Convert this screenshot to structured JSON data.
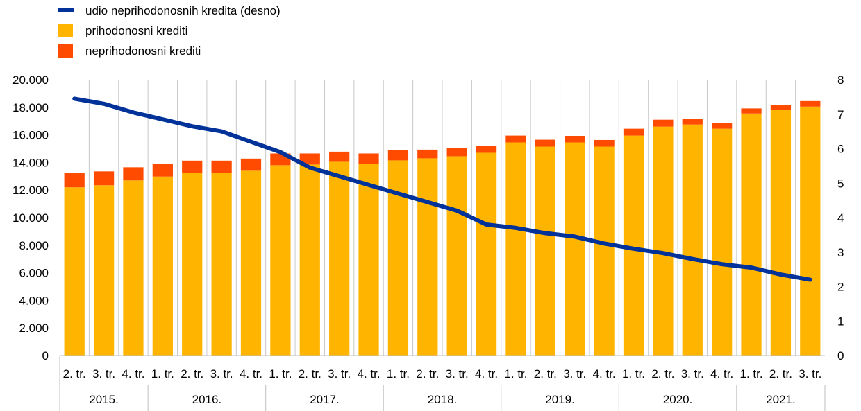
{
  "chart_data": {
    "type": "bar",
    "stacked": true,
    "legend": {
      "placement": "top-left",
      "entries": [
        {
          "label": "udio neprihodonosnih   kredita (desno)",
          "color": "#003299",
          "kind": "line"
        },
        {
          "label": "prihodonosni  krediti",
          "color": "#FFB400",
          "kind": "box"
        },
        {
          "label": "neprihodonosni  krediti",
          "color": "#FF4B00",
          "kind": "box"
        }
      ]
    },
    "categories": [
      "2. tr.",
      "3. tr.",
      "4. tr.",
      "1. tr.",
      "2. tr.",
      "3. tr.",
      "4. tr.",
      "1. tr.",
      "2. tr.",
      "3. tr.",
      "4. tr.",
      "1. tr.",
      "2. tr.",
      "3. tr.",
      "4. tr.",
      "1. tr.",
      "2. tr.",
      "3. tr.",
      "4. tr.",
      "1. tr.",
      "2. tr.",
      "3. tr.",
      "4. tr.",
      "1. tr.",
      "2. tr.",
      "3. tr."
    ],
    "years": [
      {
        "label": "2015.",
        "count": 3
      },
      {
        "label": "2016.",
        "count": 4
      },
      {
        "label": "2017.",
        "count": 4
      },
      {
        "label": "2018.",
        "count": 4
      },
      {
        "label": "2019.",
        "count": 4
      },
      {
        "label": "2020.",
        "count": 4
      },
      {
        "label": "2021.",
        "count": 3
      }
    ],
    "series": [
      {
        "name": "prihodonosni  krediti",
        "axis": "left",
        "type": "bar",
        "color": "#FFB400",
        "values": [
          12200,
          12350,
          12700,
          12980,
          13250,
          13250,
          13400,
          13800,
          13850,
          14050,
          13900,
          14150,
          14300,
          14450,
          14700,
          15450,
          15150,
          15450,
          15150,
          15950,
          16600,
          16750,
          16450,
          17550,
          17800,
          18050
        ]
      },
      {
        "name": "neprihodonosni  krediti",
        "axis": "left",
        "type": "bar",
        "color": "#FF4B00",
        "values": [
          1050,
          1000,
          950,
          900,
          880,
          880,
          880,
          850,
          800,
          730,
          750,
          750,
          630,
          620,
          500,
          500,
          500,
          480,
          480,
          500,
          500,
          400,
          400,
          370,
          370,
          400
        ]
      },
      {
        "name": "udio neprihodonosnih   kredita (desno)",
        "axis": "right",
        "type": "line",
        "color": "#003299",
        "values": [
          7.45,
          7.3,
          7.05,
          6.85,
          6.65,
          6.5,
          6.2,
          5.9,
          5.45,
          5.2,
          4.95,
          4.7,
          4.45,
          4.2,
          3.8,
          3.7,
          3.55,
          3.45,
          3.25,
          3.1,
          2.97,
          2.8,
          2.65,
          2.55,
          2.35,
          2.2
        ]
      }
    ],
    "y_left": {
      "min": 0,
      "max": 20000,
      "ticks": [
        "0",
        "2.000",
        "4.000",
        "6.000",
        "8.000",
        "10.000",
        "12.000",
        "14.000",
        "16.000",
        "18.000",
        "20.000"
      ]
    },
    "y_right": {
      "min": 0,
      "max": 8,
      "ticks": [
        "0",
        "1",
        "2",
        "3",
        "4",
        "5",
        "6",
        "7",
        "8"
      ]
    },
    "grid": {
      "vertical": true,
      "horizontal": false,
      "color": "#C8C8C8"
    }
  }
}
